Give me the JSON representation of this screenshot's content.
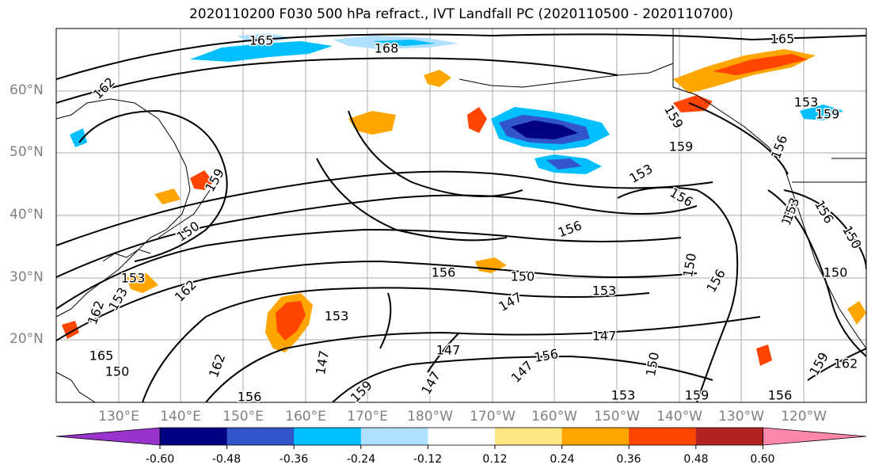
{
  "title": "2020110200 F030 500 hPa refract., IVT Landfall PC (2020110500 - 2020110700)",
  "lat_labels": [
    "60°N",
    "50°N",
    "40°N",
    "30°N",
    "20°N"
  ],
  "lon_labels": [
    "130°E",
    "140°E",
    "150°E",
    "160°E",
    "170°E",
    "180°W",
    "170°W",
    "160°W",
    "150°W",
    "140°W",
    "130°W",
    "120°W"
  ],
  "contour_labels": [
    "165",
    "168",
    "165",
    "162",
    "153",
    "156",
    "162",
    "159",
    "159",
    "159",
    "156",
    "159",
    "156",
    "153",
    "150",
    "156",
    "150",
    "153",
    "150",
    "153",
    "147",
    "150",
    "153",
    "147",
    "147",
    "150",
    "156",
    "153",
    "162",
    "159",
    "165",
    "162",
    "156",
    "159",
    "153",
    "159",
    "147",
    "147",
    "156",
    "150",
    "162",
    "153",
    "156",
    "153",
    "150",
    "147",
    "156"
  ],
  "colorbar": {
    "tick_labels": [
      "-0.60",
      "-0.48",
      "-0.36",
      "-0.24",
      "-0.12",
      "0.12",
      "0.24",
      "0.36",
      "0.48",
      "0.60"
    ],
    "colors": [
      "#9933cc",
      "#000080",
      "#3355cc",
      "#00bfff",
      "#b0e0ff",
      "#ffffff",
      "#ffe680",
      "#ffa500",
      "#ff4500",
      "#b22222",
      "#ff88aa"
    ]
  }
}
